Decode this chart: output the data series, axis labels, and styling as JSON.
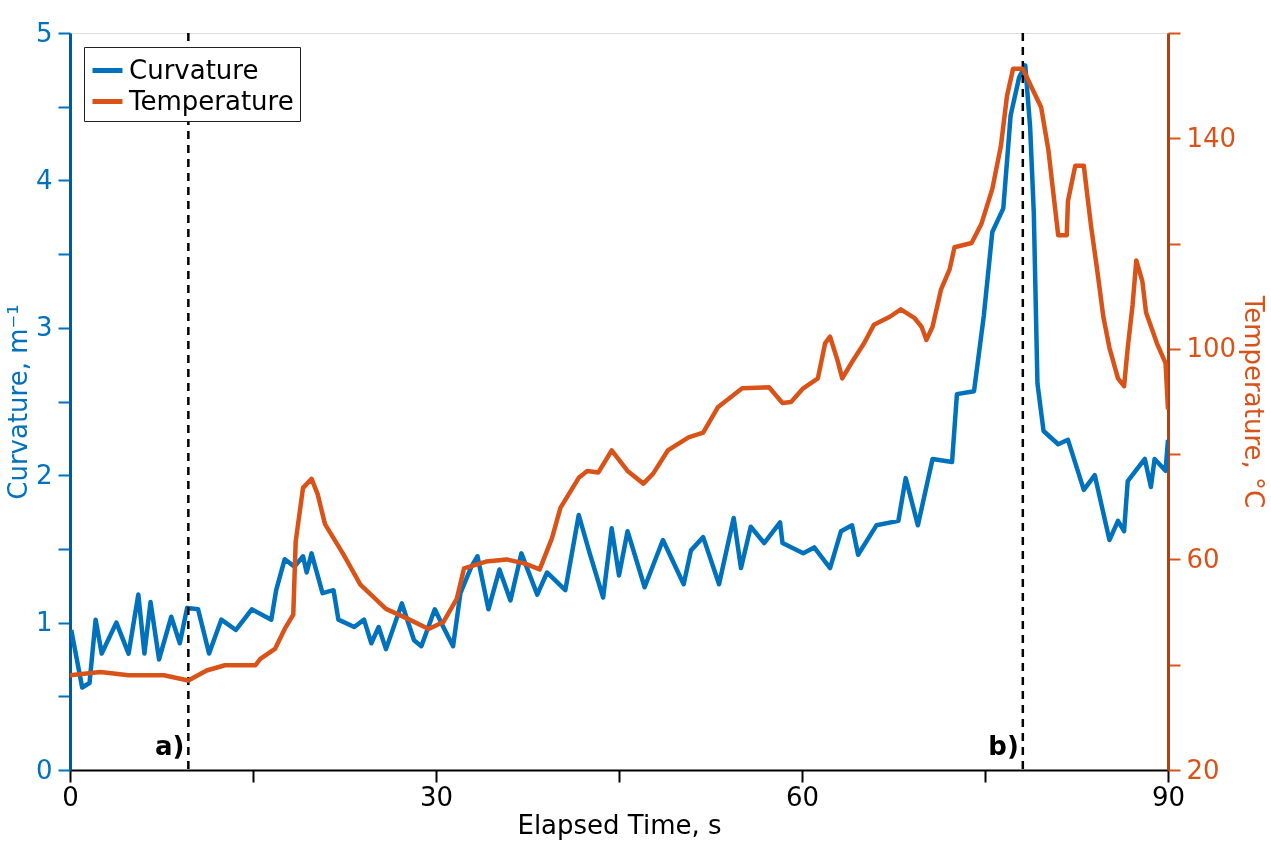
{
  "chart_data": {
    "type": "line",
    "xlabel": "Elapsed Time, s",
    "ylabel": "Curvature, m⁻¹",
    "y2label": "Temperature, °C",
    "xlim": [
      0,
      90
    ],
    "xticks": [
      0,
      {
        "value": 15,
        "label": null
      },
      30,
      {
        "value": 45,
        "label": null
      },
      60,
      {
        "value": 75,
        "label": null
      },
      90
    ],
    "ylim": [
      0,
      5
    ],
    "yticks": [
      0,
      {
        "value": 0.5,
        "label": null
      },
      1,
      {
        "value": 1.5,
        "label": null
      },
      2,
      {
        "value": 2.5,
        "label": null
      },
      3,
      {
        "value": 3.5,
        "label": null
      },
      4,
      {
        "value": 4.5,
        "label": null
      },
      5
    ],
    "y2lim": [
      20,
      160
    ],
    "y2ticks": [
      20,
      {
        "value": 40,
        "label": null
      },
      60,
      {
        "value": 80,
        "label": null
      },
      100,
      {
        "value": 120,
        "label": null
      },
      140,
      {
        "value": 160,
        "label": null
      }
    ],
    "grid": false,
    "legend": "top left",
    "marker": "none",
    "line_style": "solid",
    "ref_lines": [
      {
        "axis": "x",
        "value": 9.7,
        "label": "a)",
        "color": "#000000",
        "line_style": "dashed"
      },
      {
        "axis": "x",
        "value": 78.1,
        "label": "b)",
        "color": "#000000",
        "line_style": "dashed"
      }
    ],
    "series": [
      {
        "name": "Curvature",
        "color": "#0072bd",
        "x": [
          0.1,
          1.0,
          1.6,
          2.1,
          2.6,
          3.8,
          4.8,
          5.6,
          6.1,
          6.6,
          7.3,
          8.3,
          9.0,
          9.6,
          10.5,
          11.4,
          12.4,
          13.6,
          14.9,
          16.5,
          16.9,
          17.6,
          18.4,
          19.1,
          19.4,
          19.8,
          20.7,
          21.6,
          22.0,
          23.3,
          24.1,
          24.7,
          25.3,
          25.9,
          27.2,
          28.2,
          28.8,
          29.9,
          30.6,
          31.4,
          32.0,
          32.9,
          33.4,
          34.3,
          35.2,
          36.1,
          37.0,
          38.3,
          39.1,
          40.6,
          41.7,
          42.6,
          43.7,
          44.4,
          45.0,
          45.7,
          47.1,
          48.6,
          50.3,
          50.9,
          51.9,
          53.2,
          54.4,
          55.0,
          55.8,
          56.9,
          58.2,
          58.4,
          60.1,
          61.0,
          62.3,
          63.2,
          64.1,
          64.6,
          66.1,
          67.9,
          68.5,
          69.5,
          70.7,
          72.3,
          72.7,
          74.1,
          74.9,
          75.6,
          76.5,
          77.1,
          77.8,
          78.3,
          78.7,
          79.0,
          79.3,
          79.8,
          81.0,
          81.8,
          83.1,
          84.0,
          85.2,
          85.9,
          86.4,
          86.7,
          88.1,
          88.6,
          88.9,
          89.8,
          90
        ],
        "values": [
          0.95,
          0.56,
          0.59,
          1.02,
          0.79,
          1.0,
          0.79,
          1.19,
          0.79,
          1.14,
          0.75,
          1.04,
          0.86,
          1.1,
          1.09,
          0.79,
          1.02,
          0.95,
          1.09,
          1.02,
          1.22,
          1.43,
          1.38,
          1.45,
          1.34,
          1.47,
          1.2,
          1.22,
          1.02,
          0.97,
          1.02,
          0.86,
          0.97,
          0.82,
          1.13,
          0.88,
          0.84,
          1.09,
          0.97,
          0.84,
          1.2,
          1.38,
          1.45,
          1.09,
          1.36,
          1.15,
          1.47,
          1.19,
          1.34,
          1.22,
          1.73,
          1.47,
          1.17,
          1.64,
          1.32,
          1.62,
          1.24,
          1.56,
          1.26,
          1.49,
          1.58,
          1.26,
          1.71,
          1.37,
          1.65,
          1.54,
          1.68,
          1.54,
          1.47,
          1.51,
          1.37,
          1.62,
          1.66,
          1.46,
          1.66,
          1.69,
          1.98,
          1.66,
          2.11,
          2.09,
          2.55,
          2.57,
          3.08,
          3.65,
          3.81,
          4.44,
          4.7,
          4.78,
          4.36,
          3.78,
          2.62,
          2.3,
          2.21,
          2.24,
          1.9,
          2.0,
          1.56,
          1.69,
          1.62,
          1.96,
          2.11,
          1.92,
          2.11,
          2.03,
          2.24
        ]
      },
      {
        "name": "Temperature",
        "color": "#d95319",
        "axis": "y2",
        "x": [
          0,
          2.5,
          4.8,
          7.7,
          9.7,
          11.2,
          12.7,
          15.2,
          15.6,
          16.8,
          17.6,
          18.3,
          18.5,
          19.1,
          19.8,
          20.3,
          20.9,
          22.4,
          23.8,
          25.9,
          27.7,
          29.4,
          30.6,
          31.7,
          32.3,
          34.1,
          35.8,
          37.3,
          38.5,
          39.5,
          40.2,
          41.7,
          42.4,
          43.3,
          44.4,
          45.7,
          47.0,
          47.8,
          49.0,
          50.7,
          51.9,
          53.1,
          55.1,
          57.3,
          58.4,
          59.1,
          60.1,
          61.3,
          61.9,
          62.3,
          62.9,
          63.3,
          64.1,
          65.1,
          65.9,
          67.2,
          68.1,
          69.2,
          69.8,
          70.2,
          70.7,
          71.4,
          72.1,
          72.5,
          73.9,
          74.7,
          75.6,
          76.3,
          76.8,
          77.3,
          78.1,
          79.0,
          79.6,
          80.2,
          80.7,
          81.0,
          81.7,
          81.8,
          82.4,
          83.1,
          83.4,
          83.7,
          84.2,
          84.7,
          85.2,
          85.9,
          86.4,
          86.7,
          87.1,
          87.4,
          87.9,
          88.2,
          89.1,
          89.8,
          90
        ],
        "values": [
          38.0,
          38.6,
          38.0,
          38.0,
          37.0,
          38.9,
          39.9,
          39.9,
          41.1,
          43.0,
          46.8,
          49.5,
          63.4,
          73.6,
          75.3,
          72.4,
          66.7,
          61.0,
          55.2,
          50.6,
          48.7,
          46.8,
          48.1,
          52.5,
          58.3,
          59.6,
          60.0,
          59.2,
          58.1,
          64.0,
          69.8,
          75.5,
          76.8,
          76.5,
          80.7,
          76.8,
          74.4,
          76.3,
          80.7,
          83.2,
          84.1,
          88.9,
          92.5,
          92.7,
          89.7,
          89.9,
          92.5,
          94.4,
          101.1,
          102.3,
          97.9,
          94.4,
          97.5,
          101.1,
          104.6,
          106.1,
          107.5,
          105.9,
          104.2,
          101.7,
          104.2,
          111.3,
          115.1,
          119.3,
          120.1,
          123.7,
          130.4,
          138.5,
          148.0,
          153.2,
          153.2,
          148.8,
          145.9,
          137.7,
          127.6,
          121.6,
          121.6,
          128.1,
          134.8,
          134.8,
          128.9,
          123.2,
          114.9,
          106.1,
          100.2,
          94.4,
          92.9,
          100.2,
          108.4,
          116.8,
          112.8,
          106.9,
          101.0,
          97.3,
          88.5
        ]
      }
    ]
  }
}
